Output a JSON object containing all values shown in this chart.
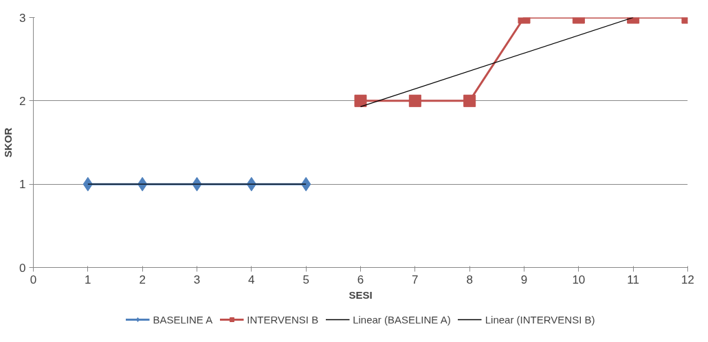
{
  "chart_data": {
    "type": "line",
    "xlabel": "SESI",
    "ylabel": "SKOR",
    "xlim": [
      0,
      12
    ],
    "xticks": [
      0,
      1,
      2,
      3,
      4,
      5,
      6,
      7,
      8,
      9,
      10,
      11,
      12
    ],
    "ylim": [
      0,
      3
    ],
    "yticks": [
      0,
      1,
      2,
      3
    ],
    "grid": "y",
    "legend": "bottom",
    "series": [
      {
        "name": "BASELINE A",
        "color": "#4f81bd",
        "marker": "diamond",
        "x": [
          1,
          2,
          3,
          4,
          5
        ],
        "values": [
          1,
          1,
          1,
          1,
          1
        ]
      },
      {
        "name": "INTERVENSI B",
        "color": "#c0504d",
        "marker": "square",
        "x": [
          6,
          7,
          8,
          9,
          10,
          11,
          12
        ],
        "values": [
          2,
          2,
          2,
          3,
          3,
          3,
          3
        ]
      },
      {
        "name": "Linear (BASELINE A)",
        "color": "#000000",
        "marker": "none",
        "x": [
          1,
          5
        ],
        "values": [
          1,
          1
        ]
      },
      {
        "name": "Linear (INTERVENSI B)",
        "color": "#000000",
        "marker": "none",
        "x": [
          6,
          11
        ],
        "values": [
          1.93,
          3.0
        ]
      }
    ]
  }
}
